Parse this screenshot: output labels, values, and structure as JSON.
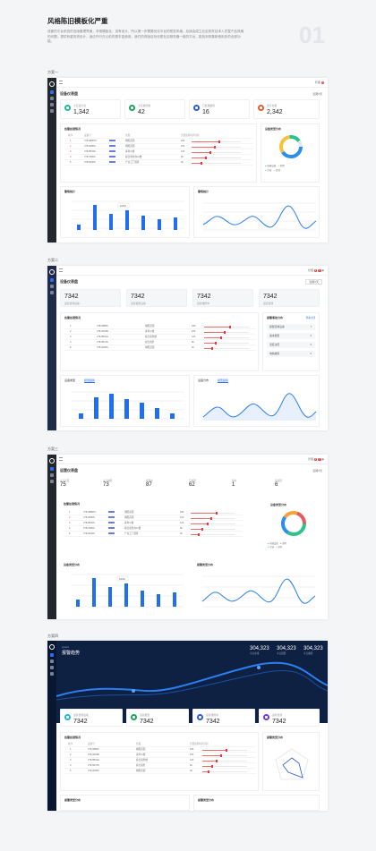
{
  "header": {
    "title": "风格陈旧模板化严重",
    "desc": "成都的平台系统的旧版管理界面，非常模板化，没有设计，所以第一步需要优化平台的视觉风格，后续会成立社区软件技术人员整产品风格的问题，提供有重的亮设计，适应作行在以前的更丰富使用，我们的改版目标也是社区服务器一组的平台，能找到采集新使用多的全部功能。",
    "num": "01"
  },
  "sections": [
    "方案一",
    "方案二",
    "方案三",
    "方案四"
  ],
  "s1": {
    "page": "设备仪表盘",
    "action": "近期7天",
    "cards": [
      {
        "label": "今日运行总",
        "value": "1,342",
        "color": "#1fb4a8"
      },
      {
        "label": "今日故障数",
        "value": "42",
        "color": "#16a35a"
      },
      {
        "label": "已处理故障",
        "value": "16",
        "color": "#2a56d8"
      },
      {
        "label": "累计总量",
        "value": "2,342",
        "color": "#e55a2a"
      }
    ],
    "table": {
      "title": "告警处理情况",
      "head": [
        "排序",
        "设备号",
        "位置",
        "告警处理时间分析"
      ],
      "rows": [
        [
          "1",
          "JT8-0886TC",
          "朝阳花园",
          "18h"
        ],
        [
          "2",
          "JT8-6086S",
          "朝阳花园",
          "15h"
        ],
        [
          "3",
          "JT8-8503S",
          "青年公寓",
          "12h"
        ],
        [
          "4",
          "JT8-70820",
          "综合商务办公楼",
          "6h"
        ],
        [
          "5",
          "JT8-6030S",
          "产业工厂园区",
          "4h"
        ]
      ]
    },
    "donut": {
      "title": "设备类型分布",
      "legend": [
        "电梯设备",
        "照明",
        "空调",
        "其他"
      ]
    },
    "bar": {
      "title": "警情统计",
      "tip": "1034",
      "cats": [
        "2016",
        "2017",
        "2018",
        "2019",
        "2020",
        "2021",
        "2022"
      ]
    },
    "line": {
      "title": "警情统计"
    }
  },
  "s2": {
    "page": "设备仪表盘",
    "top": "管理",
    "range": "近期7天",
    "cards": [
      {
        "label": "运营监测设备",
        "value": "7342"
      },
      {
        "label": "运营报警设备",
        "value": "7342"
      },
      {
        "label": "运营维修中",
        "value": "7342"
      },
      {
        "label": "运营监测",
        "value": "7342"
      }
    ],
    "table": {
      "title": "告警处理情况",
      "rows": [
        [
          "1",
          "JT8-0886S",
          "朝阳花园",
          "18h"
        ],
        [
          "2",
          "JT8-0003B",
          "青年公寓",
          "15h"
        ],
        [
          "3",
          "JT8-8501H",
          "综合商务楼",
          "12h"
        ],
        [
          "4",
          "JT8-5574S",
          "综合商务",
          "6h"
        ],
        [
          "5",
          "JT8-0006S",
          "朝阳花园",
          "4h"
        ]
      ]
    },
    "list": {
      "title": "报警事故分布",
      "link": "查看全部",
      "items": [
        [
          "报警区域设备",
          "7"
        ],
        [
          "漏水报警",
          "4"
        ],
        [
          "温度过低",
          "3"
        ],
        [
          "电梯故障",
          "2"
        ]
      ]
    },
    "bar": {
      "tabs": [
        "设备类型",
        "报警趋势"
      ]
    },
    "line": {
      "tabs": [
        "设备分布",
        "报警趋势"
      ]
    }
  },
  "s3": {
    "page": "运营仪表盘",
    "range": "近期7天",
    "stats": [
      {
        "label": "今日告警",
        "value": "75"
      },
      {
        "label": "今日故障",
        "value": "73"
      },
      {
        "label": "处理中",
        "value": "87"
      },
      {
        "label": "已处理",
        "value": "62"
      },
      {
        "label": "超时",
        "value": "1"
      },
      {
        "label": "待处理",
        "value": "6"
      }
    ],
    "table": {
      "title": "告警处理情况"
    },
    "donut": {
      "title": "设备类型分布"
    },
    "bar": {
      "title": "设备类型分布",
      "tip": "1034"
    },
    "line": {
      "title": "报警类型分布"
    }
  },
  "s4": {
    "name": "报警趋势",
    "stats": [
      {
        "v": "304,323",
        "l": "今日在线"
      },
      {
        "v": "304,323",
        "l": "今日报警"
      },
      {
        "v": "304,323",
        "l": "今日故障"
      }
    ],
    "cards": [
      {
        "label": "运营监测设备",
        "value": "7342",
        "color": "#1fb4d6"
      },
      {
        "label": "运营报警",
        "value": "7342",
        "color": "#16a35a"
      },
      {
        "label": "运营维修中",
        "value": "7342",
        "color": "#2a56d8"
      },
      {
        "label": "运营监测",
        "value": "7342",
        "color": "#6b3bd8"
      }
    ],
    "table": {
      "title": "告警处理情况"
    },
    "radar": {
      "title": "报警类型分布"
    },
    "footer": [
      "报警类型分布",
      "报警类型分布"
    ]
  }
}
